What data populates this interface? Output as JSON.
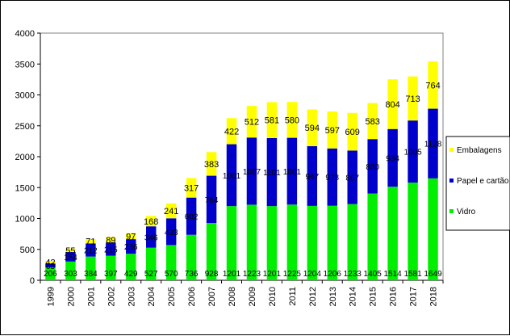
{
  "chart_data": {
    "type": "bar",
    "stacked": true,
    "title": "",
    "xlabel": "",
    "ylabel": "",
    "ylim": [
      0,
      4000
    ],
    "yticks": [
      0,
      500,
      1000,
      1500,
      2000,
      2500,
      3000,
      3500,
      4000
    ],
    "categories": [
      "1999",
      "2000",
      "2001",
      "2002",
      "2003",
      "2004",
      "2005",
      "2006",
      "2007",
      "2008",
      "2009",
      "2010",
      "2011",
      "2012",
      "2013",
      "2014",
      "2015",
      "2016",
      "2017",
      "2018"
    ],
    "series": [
      {
        "name": "Vidro",
        "color": "#00ee00",
        "values": [
          206,
          303,
          384,
          397,
          429,
          527,
          570,
          736,
          928,
          1201,
          1223,
          1201,
          1225,
          1204,
          1206,
          1233,
          1405,
          1514,
          1581,
          1649
        ]
      },
      {
        "name": "Papel e cartão",
        "color": "#0000cc",
        "values": [
          65,
          154,
          212,
          215,
          236,
          346,
          433,
          602,
          764,
          1001,
          1087,
          1101,
          1081,
          967,
          928,
          867,
          880,
          934,
          1005,
          1128
        ]
      },
      {
        "name": "Embalagens",
        "color": "#ffff00",
        "values": [
          42,
          55,
          71,
          89,
          97,
          168,
          241,
          317,
          383,
          422,
          512,
          581,
          580,
          594,
          597,
          609,
          583,
          804,
          713,
          764
        ]
      }
    ],
    "legend_position": "right",
    "legend_order": [
      "Embalagens",
      "Papel e cartão",
      "Vidro"
    ],
    "grid": false,
    "background": "#ffffff",
    "plot_border": "#808080"
  }
}
